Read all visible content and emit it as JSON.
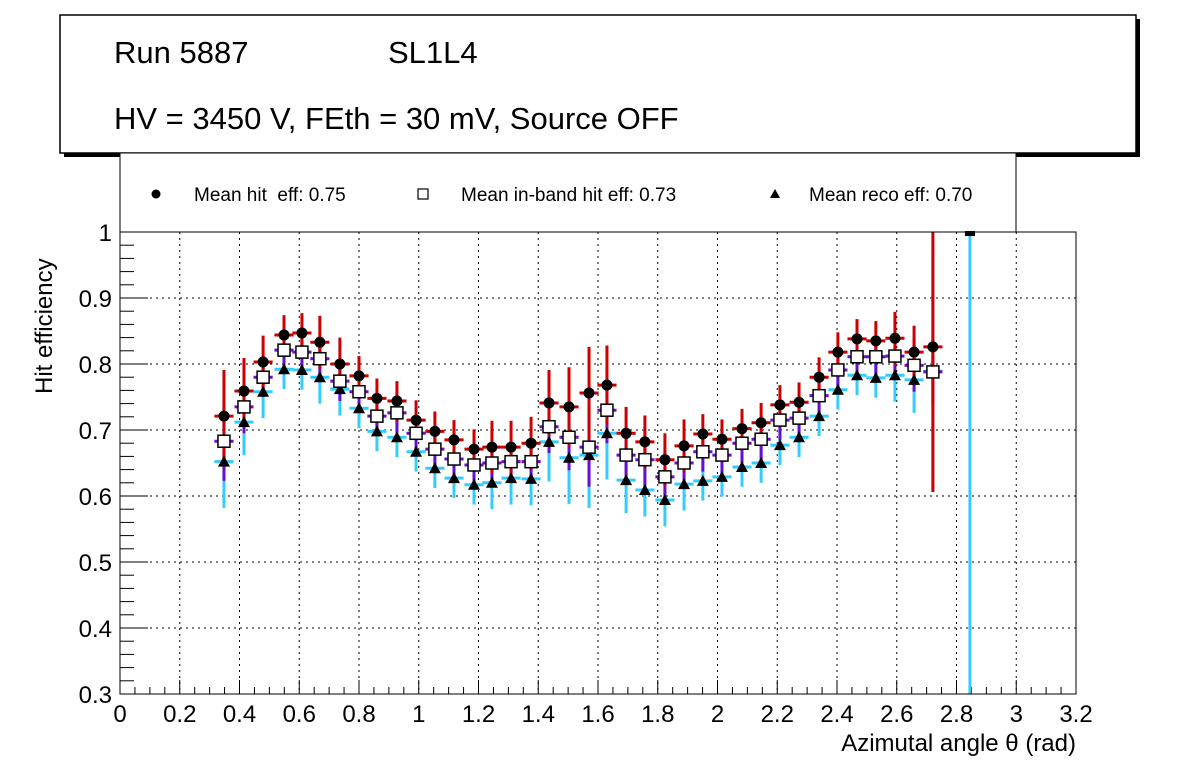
{
  "header": {
    "run": "Run 5887",
    "layer": "SL1L4",
    "conditions": "HV = 3450 V, FEth = 30 mV, Source OFF"
  },
  "chart_data": {
    "type": "scatter",
    "xlabel": "Azimutal angle θ (rad)",
    "ylabel": "Hit efficiency",
    "xlim": [
      0,
      3.2
    ],
    "ylim": [
      0.3,
      1.0
    ],
    "grid": true,
    "legend_position": "top",
    "x_ticks": [
      "0",
      "0.2",
      "0.4",
      "0.6",
      "0.8",
      "1",
      "1.2",
      "1.4",
      "1.6",
      "1.8",
      "2",
      "2.2",
      "2.4",
      "2.6",
      "2.8",
      "3",
      "3.2"
    ],
    "y_ticks": [
      "0.3",
      "0.4",
      "0.5",
      "0.6",
      "0.7",
      "0.8",
      "0.9",
      "1"
    ],
    "bin_half_width": 0.032,
    "x": [
      0.348,
      0.415,
      0.479,
      0.549,
      0.609,
      0.669,
      0.736,
      0.8,
      0.86,
      0.927,
      0.991,
      1.054,
      1.118,
      1.185,
      1.245,
      1.309,
      1.376,
      1.436,
      1.503,
      1.57,
      1.63,
      1.694,
      1.757,
      1.824,
      1.888,
      1.951,
      2.015,
      2.082,
      2.146,
      2.209,
      2.273,
      2.34,
      2.403,
      2.467,
      2.53,
      2.594,
      2.658,
      2.721,
      2.845
    ],
    "series": [
      {
        "name": "Mean hit  eff: 0.75",
        "marker": "circle",
        "color": "#cc0000",
        "values": [
          0.721,
          0.759,
          0.803,
          0.844,
          0.847,
          0.833,
          0.8,
          0.782,
          0.748,
          0.744,
          0.715,
          0.698,
          0.685,
          0.671,
          0.674,
          0.674,
          0.68,
          0.741,
          0.735,
          0.756,
          0.768,
          0.695,
          0.682,
          0.655,
          0.676,
          0.694,
          0.686,
          0.702,
          0.711,
          0.738,
          0.742,
          0.78,
          0.818,
          0.838,
          0.835,
          0.839,
          0.818,
          0.826,
          null
        ],
        "errors": [
          0.07,
          0.05,
          0.04,
          0.03,
          0.03,
          0.04,
          0.04,
          0.03,
          0.03,
          0.03,
          0.03,
          0.03,
          0.03,
          0.03,
          0.04,
          0.04,
          0.04,
          0.05,
          0.06,
          0.07,
          0.06,
          0.04,
          0.04,
          0.04,
          0.04,
          0.03,
          0.03,
          0.03,
          0.03,
          0.03,
          0.03,
          0.03,
          0.03,
          0.03,
          0.03,
          0.04,
          0.04,
          0.22,
          null
        ]
      },
      {
        "name": "Mean in-band hit eff: 0.73",
        "marker": "open-square",
        "color": "#6a0dcc",
        "values": [
          0.683,
          0.735,
          0.78,
          0.821,
          0.818,
          0.808,
          0.774,
          0.758,
          0.721,
          0.726,
          0.695,
          0.671,
          0.656,
          0.647,
          0.65,
          0.652,
          0.652,
          0.705,
          0.689,
          0.674,
          0.73,
          0.662,
          0.655,
          0.629,
          0.65,
          0.667,
          0.662,
          0.68,
          0.686,
          0.715,
          0.718,
          0.752,
          0.791,
          0.811,
          0.811,
          0.812,
          0.798,
          0.788,
          null
        ],
        "errors": [
          0.06,
          0.04,
          0.03,
          0.03,
          0.03,
          0.03,
          0.03,
          0.03,
          0.03,
          0.03,
          0.03,
          0.03,
          0.03,
          0.03,
          0.03,
          0.03,
          0.03,
          0.04,
          0.05,
          0.06,
          0.05,
          0.04,
          0.04,
          0.04,
          0.03,
          0.03,
          0.03,
          0.03,
          0.03,
          0.03,
          0.03,
          0.03,
          0.03,
          0.03,
          0.03,
          0.03,
          0.04,
          0.05,
          null
        ]
      },
      {
        "name": "Mean reco eff: 0.70",
        "marker": "triangle",
        "color": "#33ccff",
        "values": [
          0.652,
          0.712,
          0.758,
          0.792,
          0.791,
          0.78,
          0.762,
          0.733,
          0.698,
          0.689,
          0.667,
          0.642,
          0.627,
          0.617,
          0.62,
          0.627,
          0.626,
          0.682,
          0.658,
          0.662,
          0.695,
          0.624,
          0.609,
          0.594,
          0.618,
          0.623,
          0.629,
          0.644,
          0.65,
          0.677,
          0.689,
          0.721,
          0.761,
          0.783,
          0.779,
          0.783,
          0.776,
          0.789,
          1.0
        ],
        "errors": [
          0.07,
          0.05,
          0.04,
          0.03,
          0.03,
          0.04,
          0.04,
          0.03,
          0.03,
          0.03,
          0.03,
          0.03,
          0.03,
          0.03,
          0.04,
          0.04,
          0.04,
          0.06,
          0.07,
          0.08,
          0.07,
          0.05,
          0.04,
          0.04,
          0.04,
          0.03,
          0.03,
          0.03,
          0.03,
          0.03,
          0.03,
          0.03,
          0.03,
          0.03,
          0.03,
          0.04,
          0.05,
          0.18,
          0.7
        ]
      }
    ]
  }
}
